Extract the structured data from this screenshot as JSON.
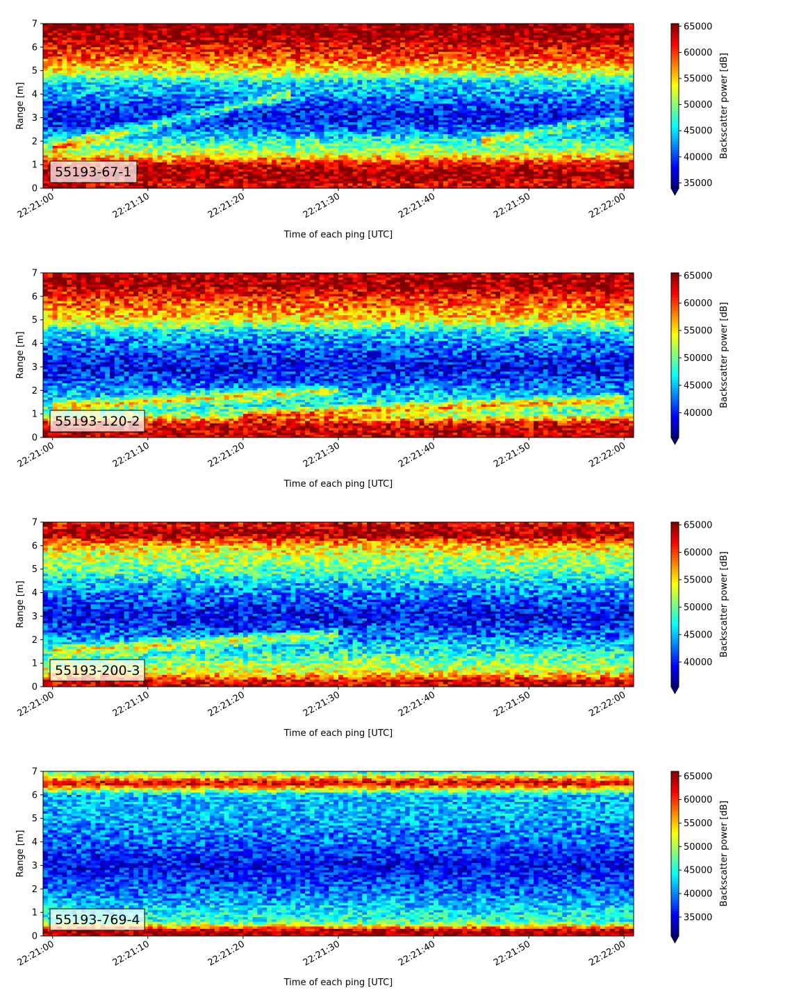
{
  "chart_data": [
    {
      "type": "heatmap",
      "label": "55193-67-1",
      "xlabel": "Time of each ping [UTC]",
      "ylabel": "Range [m]",
      "x_ticks": [
        "22:21:00",
        "22:21:10",
        "22:21:20",
        "22:21:30",
        "22:21:40",
        "22:21:50",
        "22:22:00"
      ],
      "y_ticks": [
        "0",
        "1",
        "2",
        "3",
        "4",
        "5",
        "6",
        "7"
      ],
      "ylim": [
        0,
        7
      ],
      "colorbar_label": "Backscatter power [dB]",
      "colorbar_ticks": [
        "35000",
        "40000",
        "45000",
        "50000",
        "55000",
        "60000",
        "65000"
      ],
      "colorbar_range": [
        34000,
        65500
      ],
      "colormap": "jet",
      "profile": {
        "range_m": [
          0.2,
          0.6,
          1.0,
          1.5,
          2.0,
          2.5,
          3.0,
          3.5,
          4.0,
          4.5,
          5.0,
          5.5,
          6.0,
          6.5,
          7.0
        ],
        "power": [
          63000,
          65000,
          62000,
          52000,
          47000,
          41000,
          38000,
          40000,
          43000,
          45000,
          54000,
          59000,
          62000,
          65000,
          65000
        ]
      },
      "streaks": [
        {
          "from": [
            0,
            1.7
          ],
          "to": [
            25,
            4.0
          ]
        },
        {
          "from": [
            45,
            2.0
          ],
          "to": [
            60,
            3.0
          ]
        }
      ]
    },
    {
      "type": "heatmap",
      "label": "55193-120-2",
      "xlabel": "Time of each ping [UTC]",
      "ylabel": "Range [m]",
      "x_ticks": [
        "22:21:00",
        "22:21:10",
        "22:21:20",
        "22:21:30",
        "22:21:40",
        "22:21:50",
        "22:22:00"
      ],
      "y_ticks": [
        "0",
        "1",
        "2",
        "3",
        "4",
        "5",
        "6",
        "7"
      ],
      "ylim": [
        0,
        7
      ],
      "colorbar_label": "Backscatter power [dB]",
      "colorbar_ticks": [
        "40000",
        "45000",
        "50000",
        "55000",
        "60000",
        "65000"
      ],
      "colorbar_range": [
        35500,
        65500
      ],
      "colormap": "jet",
      "profile": {
        "range_m": [
          0.2,
          0.6,
          1.0,
          1.5,
          2.0,
          2.5,
          3.0,
          3.5,
          4.0,
          4.5,
          5.0,
          5.5,
          6.0,
          6.5,
          7.0
        ],
        "power": [
          64000,
          62000,
          50000,
          47000,
          44000,
          41000,
          39000,
          41000,
          43000,
          46000,
          55000,
          58000,
          61000,
          65000,
          64000
        ]
      },
      "streaks": [
        {
          "from": [
            0,
            1.3
          ],
          "to": [
            30,
            2.0
          ]
        },
        {
          "from": [
            20,
            0.9
          ],
          "to": [
            60,
            1.6
          ]
        }
      ]
    },
    {
      "type": "heatmap",
      "label": "55193-200-3",
      "xlabel": "Time of each ping [UTC]",
      "ylabel": "Range [m]",
      "x_ticks": [
        "22:21:00",
        "22:21:10",
        "22:21:20",
        "22:21:30",
        "22:21:40",
        "22:21:50",
        "22:22:00"
      ],
      "y_ticks": [
        "0",
        "1",
        "2",
        "3",
        "4",
        "5",
        "6",
        "7"
      ],
      "ylim": [
        0,
        7
      ],
      "colorbar_label": "Backscatter power [dB]",
      "colorbar_ticks": [
        "40000",
        "45000",
        "50000",
        "55000",
        "60000",
        "65000"
      ],
      "colorbar_range": [
        35500,
        65500
      ],
      "colormap": "jet",
      "profile": {
        "range_m": [
          0.2,
          0.6,
          1.0,
          1.5,
          2.0,
          2.5,
          3.0,
          3.5,
          4.0,
          4.5,
          5.0,
          5.5,
          6.0,
          6.5,
          7.0
        ],
        "power": [
          63000,
          54000,
          51000,
          47000,
          44000,
          41000,
          39000,
          41000,
          43000,
          46000,
          50000,
          52000,
          56000,
          65000,
          62000
        ]
      },
      "streaks": [
        {
          "from": [
            0,
            1.5
          ],
          "to": [
            30,
            2.2
          ]
        }
      ]
    },
    {
      "type": "heatmap",
      "label": "55193-769-4",
      "xlabel": "Time of each ping [UTC]",
      "ylabel": "Range [m]",
      "x_ticks": [
        "22:21:00",
        "22:21:10",
        "22:21:20",
        "22:21:30",
        "22:21:40",
        "22:21:50",
        "22:22:00"
      ],
      "y_ticks": [
        "0",
        "1",
        "2",
        "3",
        "4",
        "5",
        "6",
        "7"
      ],
      "ylim": [
        0,
        7
      ],
      "colorbar_label": "Backscatter power [dB]",
      "colorbar_ticks": [
        "35000",
        "40000",
        "45000",
        "50000",
        "55000",
        "60000",
        "65000"
      ],
      "colorbar_range": [
        31000,
        66000
      ],
      "colormap": "jet",
      "profile": {
        "range_m": [
          0.2,
          0.6,
          1.0,
          1.5,
          2.0,
          2.5,
          3.0,
          3.5,
          4.0,
          4.5,
          5.0,
          5.5,
          6.0,
          6.5,
          7.0
        ],
        "power": [
          65000,
          46000,
          44000,
          41000,
          39000,
          37000,
          35000,
          37000,
          39000,
          40000,
          41000,
          42000,
          42000,
          64000,
          44000
        ]
      },
      "streaks": []
    }
  ]
}
